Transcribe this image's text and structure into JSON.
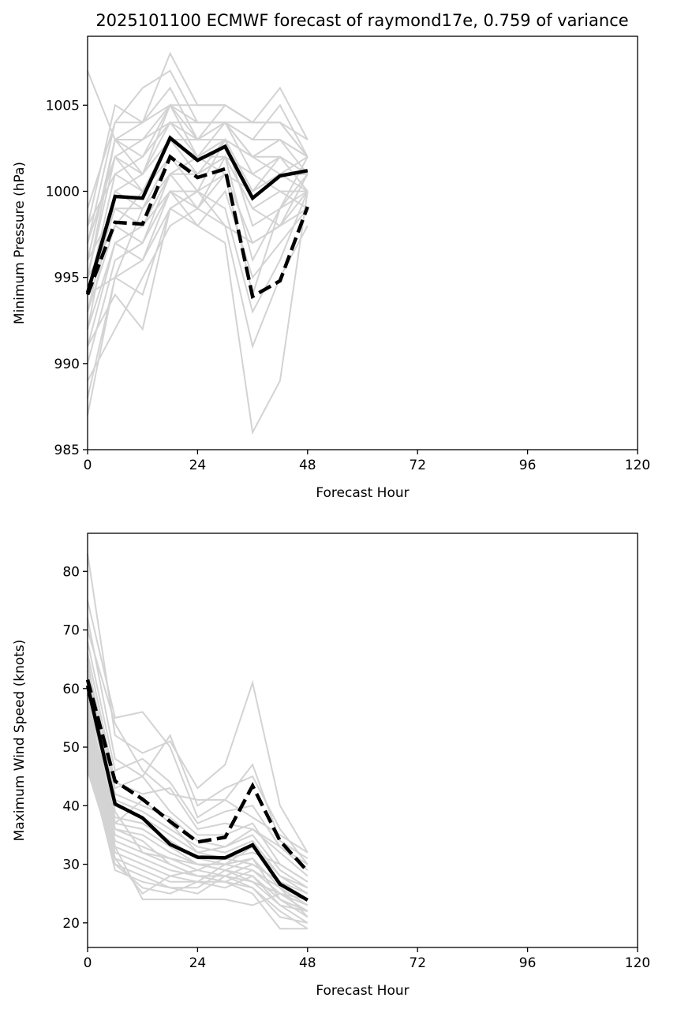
{
  "chart_data": [
    {
      "type": "line",
      "title": "2025101100 ECMWF forecast of raymond17e, 0.759 of variance",
      "xlabel": "Forecast Hour",
      "ylabel": "Minimum Pressure (hPa)",
      "xlim": [
        0,
        120
      ],
      "ylim": [
        985,
        1009
      ],
      "xticks": [
        0,
        24,
        48,
        72,
        96,
        120
      ],
      "yticks": [
        985,
        990,
        995,
        1000,
        1005
      ],
      "grid": false,
      "x": [
        0,
        6,
        12,
        18,
        24,
        30,
        36,
        42,
        48
      ],
      "highlight_series": [
        {
          "name": "solid",
          "style": "solid",
          "color": "#000000",
          "values": [
            994.1,
            999.7,
            999.6,
            1003.1,
            1001.8,
            1002.6,
            999.6,
            1000.9,
            1001.2
          ]
        },
        {
          "name": "dashed",
          "style": "dashed",
          "color": "#000000",
          "values": [
            994.0,
            998.2,
            998.1,
            1002.0,
            1000.8,
            1001.3,
            993.9,
            994.8,
            999.1
          ]
        }
      ],
      "ensemble_color": "#d3d3d3",
      "ensemble_members": [
        [
          1007.0,
          1003.0,
          1001.0,
          1005.0,
          1003.0,
          1004.0,
          1002.0,
          1003.0,
          1002.0
        ],
        [
          998.0,
          1005.0,
          1004.0,
          1008.0,
          1005.0,
          1005.0,
          1004.0,
          1006.0,
          1003.0
        ],
        [
          997.0,
          1004.0,
          1006.0,
          1007.0,
          1004.0,
          1004.0,
          1003.0,
          1005.0,
          1002.0
        ],
        [
          996.0,
          1003.0,
          1004.0,
          1006.0,
          1003.0,
          1005.0,
          1004.0,
          1004.0,
          1002.0
        ],
        [
          999.0,
          1004.0,
          1004.0,
          1005.0,
          1005.0,
          1005.0,
          1004.0,
          1004.0,
          1003.0
        ],
        [
          995.0,
          1003.0,
          1003.0,
          1005.0,
          1004.0,
          1004.0,
          1004.0,
          1004.0,
          1002.0
        ],
        [
          997.0,
          1002.0,
          1003.0,
          1004.0,
          1004.0,
          1004.0,
          1003.0,
          1003.0,
          1001.0
        ],
        [
          996.0,
          1003.0,
          1002.0,
          1004.0,
          1003.0,
          1004.0,
          1002.0,
          1003.0,
          1002.0
        ],
        [
          998.0,
          1001.0,
          1002.0,
          1005.0,
          1002.0,
          1003.0,
          1002.0,
          1002.0,
          1000.0
        ],
        [
          995.0,
          1002.0,
          1001.0,
          1004.0,
          1002.0,
          1004.0,
          1001.0,
          1002.0,
          1001.0
        ],
        [
          994.0,
          1001.0,
          1000.0,
          1003.0,
          1003.0,
          1003.0,
          1000.0,
          1001.0,
          1000.0
        ],
        [
          993.0,
          1000.0,
          1001.0,
          1003.0,
          1002.0,
          1002.0,
          1001.0,
          1000.0,
          999.0
        ],
        [
          996.0,
          999.0,
          999.0,
          1002.0,
          1001.0,
          1002.0,
          999.0,
          1000.0,
          1000.0
        ],
        [
          992.0,
          1000.0,
          999.0,
          1001.0,
          1002.0,
          1001.0,
          1000.0,
          1001.0,
          1001.0
        ],
        [
          995.0,
          998.0,
          1000.0,
          1002.0,
          1000.0,
          1003.0,
          998.0,
          999.0,
          1000.0
        ],
        [
          994.0,
          999.0,
          998.0,
          1001.0,
          1001.0,
          1002.0,
          999.0,
          998.0,
          999.0
        ],
        [
          991.0,
          997.0,
          998.0,
          1000.0,
          1000.0,
          1001.0,
          997.0,
          998.0,
          1000.0
        ],
        [
          993.0,
          998.0,
          997.0,
          1001.0,
          999.0,
          1002.0,
          996.0,
          999.0,
          1001.0
        ],
        [
          990.0,
          996.0,
          997.0,
          1000.0,
          998.0,
          1000.0,
          995.0,
          997.0,
          999.0
        ],
        [
          992.0,
          997.0,
          996.0,
          999.0,
          1000.0,
          999.0,
          993.0,
          996.0,
          1000.0
        ],
        [
          994.0,
          995.0,
          996.0,
          1000.0,
          999.0,
          998.0,
          991.0,
          995.0,
          998.0
        ],
        [
          988.0,
          995.0,
          994.0,
          999.0,
          998.0,
          997.0,
          986.0,
          989.0,
          1000.0
        ],
        [
          991.0,
          994.0,
          992.0,
          999.0,
          1000.0,
          998.0,
          997.0,
          998.0,
          1001.0
        ],
        [
          989.0,
          992.0,
          995.0,
          998.0,
          999.0,
          1001.0,
          994.0,
          999.0,
          1002.0
        ],
        [
          987.0,
          995.0,
          999.0,
          1001.0,
          1002.0,
          1003.0,
          1000.0,
          1002.0,
          1001.0
        ],
        [
          997.0,
          1002.0,
          1000.0,
          1003.0,
          1001.0,
          1003.0,
          1002.0,
          1001.0,
          1002.0
        ]
      ]
    },
    {
      "type": "line",
      "title": "",
      "xlabel": "Forecast Hour",
      "ylabel": "Maximum Wind Speed (knots)",
      "xlim": [
        0,
        120
      ],
      "ylim": [
        15.8,
        86.5
      ],
      "xticks": [
        0,
        24,
        48,
        72,
        96,
        120
      ],
      "yticks": [
        20,
        30,
        40,
        50,
        60,
        70,
        80
      ],
      "grid": false,
      "x": [
        0,
        6,
        12,
        18,
        24,
        30,
        36,
        42,
        48
      ],
      "highlight_series": [
        {
          "name": "solid",
          "style": "solid",
          "color": "#000000",
          "values": [
            60.5,
            40.3,
            37.9,
            33.4,
            31.2,
            31.1,
            33.3,
            26.6,
            23.9
          ]
        },
        {
          "name": "dashed",
          "style": "dashed",
          "color": "#000000",
          "values": [
            61.5,
            44.2,
            41.1,
            37.3,
            33.8,
            34.6,
            43.4,
            34.0,
            28.8
          ]
        }
      ],
      "ensemble_color": "#d3d3d3",
      "ensemble_members": [
        [
          83.0,
          52.0,
          49.0,
          51.0,
          43.0,
          47.0,
          61.0,
          40.0,
          32.0
        ],
        [
          75.0,
          55.0,
          56.0,
          50.0,
          38.0,
          41.0,
          47.0,
          34.0,
          31.0
        ],
        [
          72.0,
          48.0,
          45.0,
          52.0,
          40.0,
          43.0,
          45.0,
          36.0,
          30.0
        ],
        [
          70.0,
          54.0,
          46.0,
          42.0,
          41.0,
          41.0,
          38.0,
          35.0,
          32.0
        ],
        [
          68.0,
          46.0,
          48.0,
          44.0,
          37.0,
          39.0,
          40.0,
          33.0,
          29.0
        ],
        [
          66.0,
          44.0,
          42.0,
          43.0,
          36.0,
          37.0,
          36.0,
          32.0,
          28.0
        ],
        [
          64.0,
          43.0,
          45.0,
          39.0,
          35.0,
          35.0,
          37.0,
          30.0,
          27.0
        ],
        [
          62.0,
          42.0,
          40.0,
          38.0,
          34.0,
          33.0,
          35.0,
          29.0,
          26.0
        ],
        [
          60.0,
          41.0,
          39.0,
          36.0,
          33.0,
          32.0,
          34.0,
          28.0,
          25.0
        ],
        [
          58.0,
          40.0,
          38.0,
          35.0,
          32.0,
          31.0,
          30.0,
          27.0,
          24.0
        ],
        [
          57.0,
          38.0,
          37.0,
          34.0,
          31.0,
          30.0,
          31.0,
          26.0,
          23.0
        ],
        [
          56.0,
          37.0,
          36.0,
          33.0,
          30.0,
          30.0,
          29.0,
          25.0,
          22.0
        ],
        [
          55.0,
          36.0,
          35.0,
          32.0,
          30.0,
          29.0,
          28.0,
          24.0,
          21.0
        ],
        [
          54.0,
          35.0,
          33.0,
          31.0,
          29.0,
          28.0,
          27.0,
          23.0,
          20.0
        ],
        [
          53.0,
          34.0,
          32.0,
          30.0,
          28.0,
          28.0,
          26.0,
          22.0,
          19.0
        ],
        [
          52.0,
          33.0,
          31.0,
          29.0,
          28.0,
          27.0,
          25.0,
          19.0,
          19.0
        ],
        [
          51.0,
          32.0,
          30.0,
          28.0,
          27.0,
          27.0,
          26.0,
          21.0,
          20.0
        ],
        [
          50.0,
          31.0,
          29.0,
          27.0,
          27.0,
          26.0,
          28.0,
          23.0,
          22.0
        ],
        [
          49.0,
          30.0,
          28.0,
          26.0,
          26.0,
          29.0,
          27.0,
          25.0,
          24.0
        ],
        [
          48.0,
          29.0,
          27.0,
          26.0,
          25.0,
          28.0,
          30.0,
          27.0,
          25.0
        ],
        [
          47.0,
          30.0,
          26.0,
          25.0,
          27.0,
          30.0,
          33.0,
          28.0,
          26.0
        ],
        [
          46.0,
          31.0,
          25.0,
          28.0,
          29.0,
          31.0,
          32.0,
          30.0,
          27.0
        ],
        [
          59.0,
          33.0,
          24.0,
          24.0,
          24.0,
          24.0,
          23.0,
          25.0,
          23.0
        ],
        [
          61.0,
          36.0,
          34.0,
          30.0,
          28.0,
          27.0,
          29.0,
          26.0,
          21.0
        ],
        [
          63.0,
          39.0,
          32.0,
          31.0,
          30.0,
          29.0,
          31.0,
          24.0,
          22.0
        ],
        [
          65.0,
          37.0,
          41.0,
          37.0,
          32.0,
          33.0,
          36.0,
          33.0,
          30.0
        ]
      ]
    }
  ]
}
